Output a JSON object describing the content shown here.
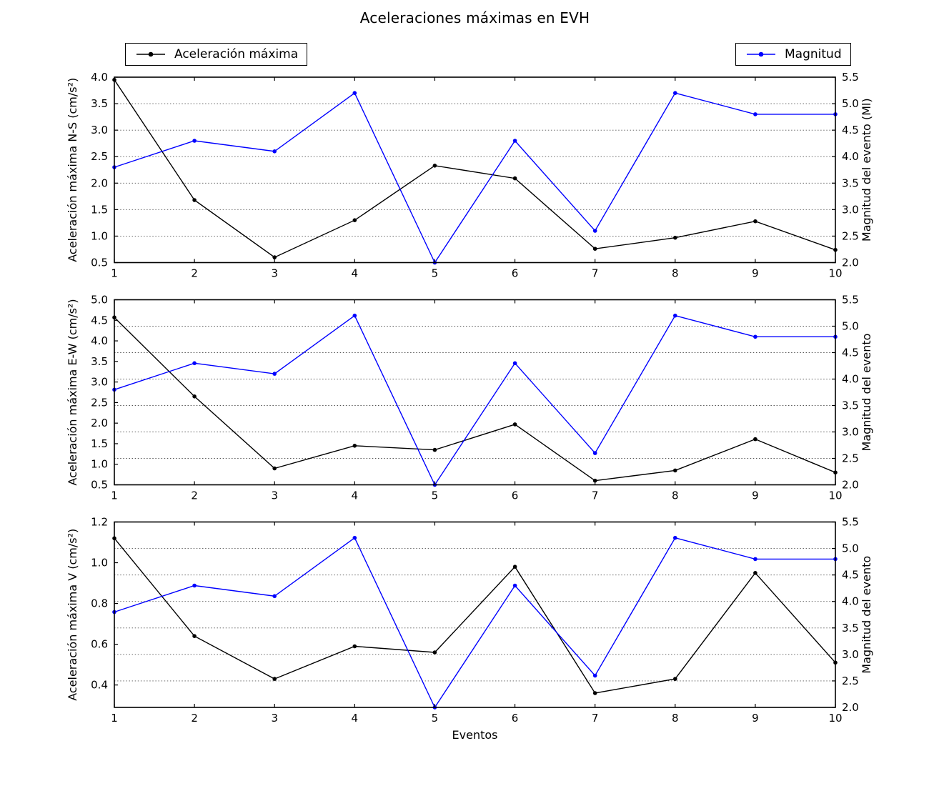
{
  "title": "Aceleraciones máximas en EVH",
  "legends": [
    {
      "label": "Aceleración máxima",
      "color": "#000000"
    },
    {
      "label": "Magnitud",
      "color": "#0000ff"
    }
  ],
  "chart_data": [
    {
      "type": "line",
      "x": [
        1,
        2,
        3,
        4,
        5,
        6,
        7,
        8,
        9,
        10
      ],
      "xlabel": "",
      "ylabel_left": "Aceleración máxima N-S (cm/s²)",
      "ylabel_right": "Magnitud del evento (Ml)",
      "ylim_left": [
        0.5,
        4.0
      ],
      "ylim_right": [
        2.0,
        5.5
      ],
      "yticks_left": [
        0.5,
        1.0,
        1.5,
        2.0,
        2.5,
        3.0,
        3.5,
        4.0
      ],
      "yticks_right": [
        2.0,
        2.5,
        3.0,
        3.5,
        4.0,
        4.5,
        5.0,
        5.5
      ],
      "grid": "horizontal dotted at right-axis ticks",
      "legend_position": "figure top",
      "series": [
        {
          "name": "Aceleración máxima",
          "axis": "left",
          "color": "#000000",
          "values": [
            3.95,
            1.68,
            0.6,
            1.3,
            2.33,
            2.09,
            0.76,
            0.97,
            1.28,
            0.74
          ]
        },
        {
          "name": "Magnitud",
          "axis": "right",
          "color": "#0000ff",
          "values": [
            3.8,
            4.3,
            4.1,
            5.2,
            2.0,
            4.3,
            2.6,
            5.2,
            4.8,
            4.8
          ]
        }
      ]
    },
    {
      "type": "line",
      "x": [
        1,
        2,
        3,
        4,
        5,
        6,
        7,
        8,
        9,
        10
      ],
      "xlabel": "",
      "ylabel_left": "Aceleración máxima E-W (cm/s²)",
      "ylabel_right": "Magnitud del evento",
      "ylim_left": [
        0.5,
        5.0
      ],
      "ylim_right": [
        2.0,
        5.5
      ],
      "yticks_left": [
        0.5,
        1.0,
        1.5,
        2.0,
        2.5,
        3.0,
        3.5,
        4.0,
        4.5,
        5.0
      ],
      "yticks_right": [
        2.0,
        2.5,
        3.0,
        3.5,
        4.0,
        4.5,
        5.0,
        5.5
      ],
      "grid": "horizontal dotted at right-axis ticks",
      "series": [
        {
          "name": "Aceleración máxima",
          "axis": "left",
          "color": "#000000",
          "values": [
            4.57,
            2.65,
            0.9,
            1.45,
            1.35,
            1.97,
            0.6,
            0.85,
            1.61,
            0.8
          ]
        },
        {
          "name": "Magnitud",
          "axis": "right",
          "color": "#0000ff",
          "values": [
            3.8,
            4.3,
            4.1,
            5.2,
            2.0,
            4.3,
            2.6,
            5.2,
            4.8,
            4.8
          ]
        }
      ]
    },
    {
      "type": "line",
      "x": [
        1,
        2,
        3,
        4,
        5,
        6,
        7,
        8,
        9,
        10
      ],
      "xlabel": "Eventos",
      "ylabel_left": "Aceleración máxima V (cm/s²)",
      "ylabel_right": "Magnitud del evento",
      "ylim_left": [
        0.29,
        1.2
      ],
      "ylim_right": [
        2.0,
        5.5
      ],
      "yticks_left": [
        0.4,
        0.6,
        0.8,
        1.0,
        1.2
      ],
      "yticks_right": [
        2.0,
        2.5,
        3.0,
        3.5,
        4.0,
        4.5,
        5.0,
        5.5
      ],
      "grid": "horizontal dotted at right-axis ticks",
      "series": [
        {
          "name": "Aceleración máxima",
          "axis": "left",
          "color": "#000000",
          "values": [
            1.12,
            0.64,
            0.43,
            0.59,
            0.56,
            0.98,
            0.36,
            0.43,
            0.95,
            0.51
          ]
        },
        {
          "name": "Magnitud",
          "axis": "right",
          "color": "#0000ff",
          "values": [
            3.8,
            4.3,
            4.1,
            5.2,
            2.0,
            4.3,
            2.6,
            5.2,
            4.8,
            4.8
          ]
        }
      ]
    }
  ]
}
